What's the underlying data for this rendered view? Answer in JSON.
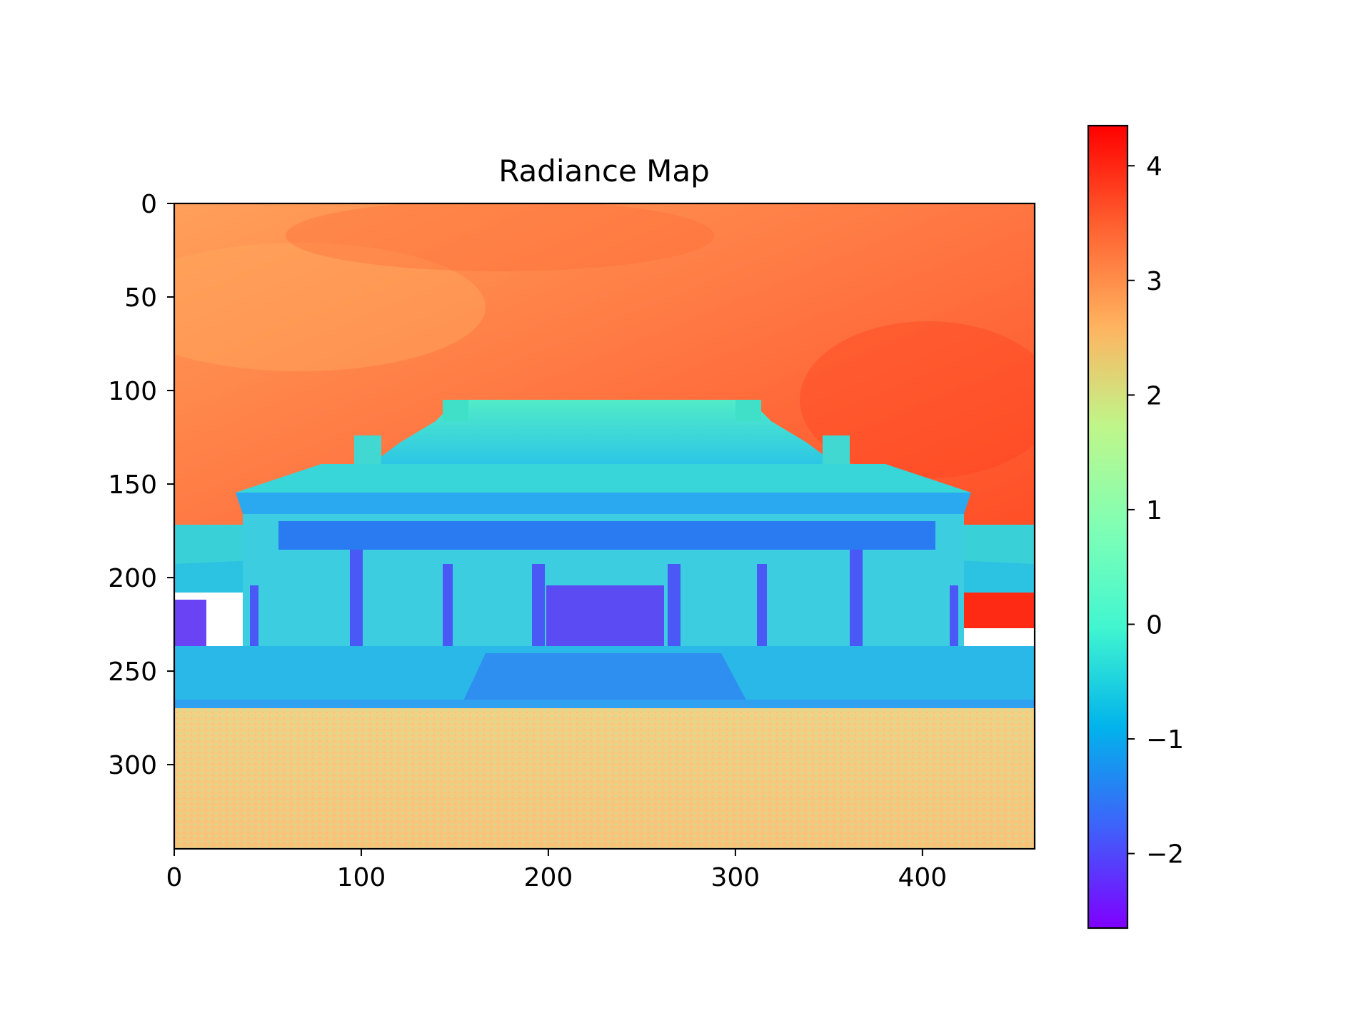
{
  "chart_data": {
    "type": "heatmap",
    "title": "Radiance Map",
    "xlabel": "",
    "ylabel": "",
    "x_range": [
      0,
      460
    ],
    "y_range": [
      0,
      345
    ],
    "y_inverted": true,
    "x_ticks": [
      "0",
      "100",
      "200",
      "300",
      "400"
    ],
    "x_tick_values": [
      0,
      100,
      200,
      300,
      400
    ],
    "y_ticks": [
      "0",
      "50",
      "100",
      "150",
      "200",
      "250",
      "300"
    ],
    "y_tick_values": [
      0,
      50,
      100,
      150,
      200,
      250,
      300
    ],
    "colormap": "rainbow",
    "colorbar": {
      "range": [
        -2.65,
        4.35
      ],
      "ticks": [
        "−2",
        "−1",
        "0",
        "1",
        "2",
        "3",
        "4"
      ],
      "tick_values": [
        -2,
        -1,
        0,
        1,
        2,
        3,
        4
      ],
      "colors": [
        "#7f00ff",
        "#3f61fa",
        "#01b3eb",
        "#41f6d0",
        "#80ffb4",
        "#bff68a",
        "#ffb360",
        "#ff6130",
        "#ff0000"
      ]
    },
    "regions": [
      {
        "name": "sky",
        "x": [
          0,
          460
        ],
        "y": [
          0,
          175
        ],
        "value": 3.4
      },
      {
        "name": "building",
        "x": [
          0,
          460
        ],
        "y": [
          110,
          270
        ],
        "value": -0.3
      },
      {
        "name": "building-shadows",
        "x": [
          90,
          440
        ],
        "y": [
          175,
          240
        ],
        "value": -1.6
      },
      {
        "name": "plaza",
        "x": [
          0,
          460
        ],
        "y": [
          270,
          345
        ],
        "value": 2.4
      }
    ]
  }
}
